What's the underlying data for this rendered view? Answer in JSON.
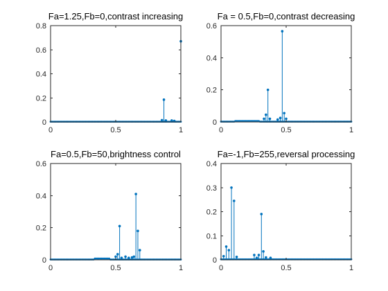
{
  "colors": {
    "series": "#0072BD",
    "axis": "#262626",
    "background": "#ffffff"
  },
  "chart_data": [
    {
      "type": "stem",
      "title": "Fa=1.25,Fb=0,contrast increasing",
      "xlim": [
        0,
        1
      ],
      "ylim": [
        0,
        0.8
      ],
      "xticks": [
        0,
        0.5,
        1
      ],
      "xtick_labels": [
        "0",
        "0.5",
        "1"
      ],
      "yticks": [
        0,
        0.2,
        0.4,
        0.6,
        0.8
      ],
      "ytick_labels": [
        "0",
        "0.2",
        "0.4",
        "0.6",
        "0.8"
      ],
      "baseline": 0.002,
      "spikes": [
        {
          "x": 0.855,
          "y": 0.015
        },
        {
          "x": 0.87,
          "y": 0.185
        },
        {
          "x": 0.885,
          "y": 0.012
        },
        {
          "x": 0.93,
          "y": 0.012
        },
        {
          "x": 0.95,
          "y": 0.008
        },
        {
          "x": 1.0,
          "y": 0.67
        }
      ]
    },
    {
      "type": "stem",
      "title": "Fa = 0.5,Fb=0,contrast decreasing",
      "xlim": [
        0,
        1
      ],
      "ylim": [
        0,
        0.6
      ],
      "xticks": [
        0,
        0.5,
        1
      ],
      "xtick_labels": [
        "0",
        "0.5",
        "1"
      ],
      "yticks": [
        0,
        0.2,
        0.4,
        0.6
      ],
      "ytick_labels": [
        "0",
        "0.2",
        "0.4",
        "0.6"
      ],
      "baseline": 0.002,
      "spikes": [
        {
          "x": 0.33,
          "y": 0.02
        },
        {
          "x": 0.345,
          "y": 0.045
        },
        {
          "x": 0.36,
          "y": 0.2
        },
        {
          "x": 0.375,
          "y": 0.02
        },
        {
          "x": 0.435,
          "y": 0.015
        },
        {
          "x": 0.455,
          "y": 0.025
        },
        {
          "x": 0.47,
          "y": 0.565
        },
        {
          "x": 0.485,
          "y": 0.055
        },
        {
          "x": 0.5,
          "y": 0.02
        }
      ]
    },
    {
      "type": "stem",
      "title": "Fa=0.5,Fb=50,brightness control",
      "xlim": [
        0,
        1
      ],
      "ylim": [
        0,
        0.6
      ],
      "xticks": [
        0,
        0.5,
        1
      ],
      "xtick_labels": [
        "0",
        "0.5",
        "1"
      ],
      "yticks": [
        0,
        0.2,
        0.4,
        0.6
      ],
      "ytick_labels": [
        "0",
        "0.2",
        "0.4",
        "0.6"
      ],
      "baseline": 0.002,
      "spikes": [
        {
          "x": 0.5,
          "y": 0.02
        },
        {
          "x": 0.515,
          "y": 0.035
        },
        {
          "x": 0.53,
          "y": 0.21
        },
        {
          "x": 0.545,
          "y": 0.012
        },
        {
          "x": 0.575,
          "y": 0.02
        },
        {
          "x": 0.6,
          "y": 0.012
        },
        {
          "x": 0.625,
          "y": 0.015
        },
        {
          "x": 0.64,
          "y": 0.02
        },
        {
          "x": 0.655,
          "y": 0.41
        },
        {
          "x": 0.67,
          "y": 0.18
        },
        {
          "x": 0.685,
          "y": 0.06
        }
      ]
    },
    {
      "type": "stem",
      "title": "Fa=-1,Fb=255,reversal processing",
      "xlim": [
        0,
        1
      ],
      "ylim": [
        0,
        0.4
      ],
      "xticks": [
        0,
        0.5,
        1
      ],
      "xtick_labels": [
        "0",
        "0.5",
        "1"
      ],
      "yticks": [
        0,
        0.1,
        0.2,
        0.3,
        0.4
      ],
      "ytick_labels": [
        "0",
        "0.1",
        "0.2",
        "0.3",
        "0.4"
      ],
      "baseline": 0.002,
      "spikes": [
        {
          "x": 0.02,
          "y": 0.015
        },
        {
          "x": 0.04,
          "y": 0.055
        },
        {
          "x": 0.06,
          "y": 0.04
        },
        {
          "x": 0.08,
          "y": 0.3
        },
        {
          "x": 0.1,
          "y": 0.245
        },
        {
          "x": 0.12,
          "y": 0.012
        },
        {
          "x": 0.255,
          "y": 0.02
        },
        {
          "x": 0.275,
          "y": 0.008
        },
        {
          "x": 0.29,
          "y": 0.02
        },
        {
          "x": 0.31,
          "y": 0.19
        },
        {
          "x": 0.325,
          "y": 0.035
        },
        {
          "x": 0.345,
          "y": 0.01
        },
        {
          "x": 0.38,
          "y": 0.008
        }
      ]
    }
  ]
}
